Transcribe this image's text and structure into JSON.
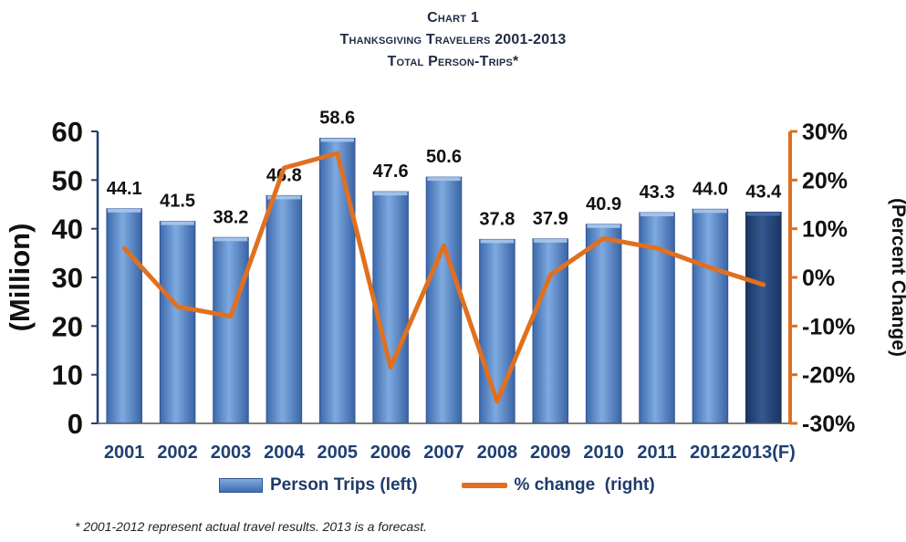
{
  "title": {
    "line1": "Chart 1",
    "line2": "Thanksgiving Travelers 2001-2013",
    "line3": "Total Person-Trips*"
  },
  "chart_data": {
    "type": "bar",
    "categories": [
      "2001",
      "2002",
      "2003",
      "2004",
      "2005",
      "2006",
      "2007",
      "2008",
      "2009",
      "2010",
      "2011",
      "2012",
      "2013(F)"
    ],
    "series": [
      {
        "name": "Person Trips (left)",
        "type": "bar",
        "axis": "left",
        "values": [
          44.1,
          41.5,
          38.2,
          46.8,
          58.6,
          47.6,
          50.6,
          37.8,
          37.9,
          40.9,
          43.3,
          44.0,
          43.4
        ]
      },
      {
        "name": "% change (right)",
        "type": "line",
        "axis": "right",
        "values": [
          6,
          -6,
          -8,
          22.5,
          25.5,
          -18.5,
          6.5,
          -25.5,
          0.5,
          8,
          6,
          2,
          -1.5
        ]
      }
    ],
    "data_labels": [
      "44.1",
      "41.5",
      "38.2",
      "46.8",
      "58.6",
      "47.6",
      "50.6",
      "37.8",
      "37.9",
      "40.9",
      "43.3",
      "44.0",
      "43.4"
    ],
    "ylabel_left": "(Million)",
    "ylabel_right": "(Percent Change)",
    "ylim_left": [
      0,
      60
    ],
    "ylim_right": [
      -30,
      30
    ],
    "yticks_left": [
      "0",
      "10",
      "20",
      "30",
      "40",
      "50",
      "60"
    ],
    "yticks_right": [
      "-30%",
      "-20%",
      "-10%",
      "0%",
      "10%",
      "20%",
      "30%"
    ],
    "highlight_last_bar": true,
    "colors": {
      "bar": "#4f81bd",
      "bar_forecast": "#1f3f73",
      "line": "#e07020",
      "axis_left": "#1f3f73",
      "axis_right": "#e07020"
    },
    "grid": false,
    "legend_position": "bottom"
  },
  "legend": {
    "bars": "Person Trips (left)",
    "line": "% change  (right)"
  },
  "footnote": "* 2001-2012 represent actual travel results.  2013 is a forecast."
}
